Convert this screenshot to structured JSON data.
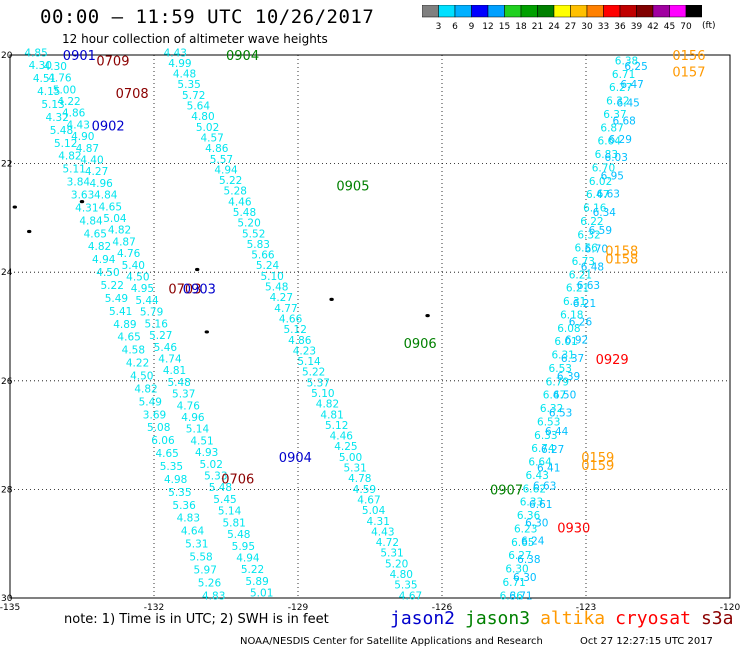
{
  "title": "00:00 – 11:59 UTC 10/26/2017",
  "subtitle": "12 hour collection of altimeter wave heights",
  "units": "(ft)",
  "colorbar": {
    "colors": [
      "#808080",
      "#00e0ff",
      "#00b0ff",
      "#0000ff",
      "#00a0ff",
      "#20d020",
      "#00a000",
      "#008000",
      "#ffff00",
      "#ffc000",
      "#ff8000",
      "#ff0000",
      "#c00000",
      "#800000",
      "#a000a0",
      "#ff00ff",
      "#000000"
    ],
    "labels": [
      "3",
      "6",
      "9",
      "12",
      "15",
      "18",
      "21",
      "24",
      "27",
      "30",
      "33",
      "36",
      "39",
      "42",
      "45",
      "70"
    ]
  },
  "axes": {
    "x_ticks": [
      "-135",
      "-132",
      "-129",
      "-126",
      "-123",
      "-120"
    ],
    "y_ticks": [
      "20",
      "22",
      "24",
      "26",
      "28",
      "30"
    ]
  },
  "tracks": [
    {
      "id": "left-pass-1",
      "color": "#00e5ee",
      "start": [
        -134.7,
        19.95
      ],
      "end": [
        -131.0,
        29.95
      ],
      "values": [
        "4.85",
        "4.30",
        "4.51",
        "4.15",
        "5.13",
        "4.32",
        "5.48",
        "5.12",
        "4.82",
        "5.11",
        "3.84",
        "3.63",
        "4.31",
        "4.84",
        "4.65",
        "4.82",
        "4.94",
        "4.50",
        "5.22",
        "5.49",
        "5.41",
        "4.89",
        "4.65",
        "4.58",
        "4.22",
        "4.50",
        "4.82",
        "5.49",
        "3.69",
        "5.08",
        "6.06",
        "4.65",
        "5.35",
        "4.98",
        "5.35",
        "5.36",
        "4.83",
        "4.64",
        "5.31",
        "5.58",
        "5.97",
        "5.26",
        "4.83"
      ]
    },
    {
      "id": "left-pass-2",
      "color": "#00e5ee",
      "start": [
        -134.3,
        20.2
      ],
      "end": [
        -130.0,
        29.9
      ],
      "values": [
        "4.30",
        "4.76",
        "5.00",
        "4.22",
        "4.86",
        "4.43",
        "4.90",
        "4.87",
        "4.40",
        "4.27",
        "4.96",
        "4.84",
        "4.65",
        "5.04",
        "4.82",
        "4.87",
        "4.76",
        "5.40",
        "4.50",
        "4.95",
        "5.44",
        "5.79",
        "5.16",
        "5.27",
        "5.46",
        "4.74",
        "4.81",
        "5.48",
        "5.37",
        "4.76",
        "4.96",
        "5.14",
        "4.51",
        "4.93",
        "5.02",
        "5.33",
        "5.48",
        "5.45",
        "5.14",
        "5.81",
        "5.48",
        "5.95",
        "4.94",
        "5.22",
        "5.89",
        "5.01"
      ]
    },
    {
      "id": "mid-pass",
      "color": "#00e5ee",
      "start": [
        -131.8,
        19.95
      ],
      "end": [
        -126.9,
        29.95
      ],
      "values": [
        "4.43",
        "4.99",
        "4.48",
        "5.35",
        "5.72",
        "5.64",
        "4.80",
        "5.02",
        "4.57",
        "4.86",
        "5.57",
        "4.94",
        "5.22",
        "5.28",
        "4.46",
        "5.48",
        "5.20",
        "5.52",
        "5.83",
        "5.66",
        "5.24",
        "5.10",
        "5.48",
        "4.27",
        "4.77",
        "4.66",
        "5.12",
        "4.86",
        "4.23",
        "5.14",
        "5.22",
        "5.37",
        "5.10",
        "4.82",
        "4.81",
        "5.12",
        "4.46",
        "4.25",
        "5.00",
        "5.31",
        "4.78",
        "4.59",
        "4.67",
        "5.04",
        "4.31",
        "4.43",
        "4.72",
        "5.31",
        "5.20",
        "4.80",
        "5.35",
        "4.67"
      ]
    },
    {
      "id": "right-pass-1",
      "color": "#00e5ee",
      "start": [
        -122.4,
        20.1
      ],
      "end": [
        -124.8,
        29.95
      ],
      "values": [
        "6.38",
        "6.71",
        "6.27",
        "6.32",
        "6.37",
        "6.87",
        "6.64",
        "6.83",
        "6.70",
        "6.02",
        "6.47",
        "6.16",
        "6.22",
        "6.32",
        "6.56",
        "6.73",
        "6.21",
        "6.21",
        "6.31",
        "6.18",
        "6.08",
        "6.01",
        "6.31",
        "6.53",
        "6.79",
        "6.47",
        "6.32",
        "6.53",
        "6.33",
        "6.74",
        "6.64",
        "6.43",
        "6.62",
        "6.33",
        "6.36",
        "6.23",
        "6.65",
        "6.27",
        "6.30",
        "6.71",
        "6.36"
      ]
    },
    {
      "id": "right-pass-2",
      "color": "#00bfff",
      "start": [
        -122.2,
        20.2
      ],
      "end": [
        -124.6,
        29.95
      ],
      "values": [
        "6.25",
        "6.47",
        "6.45",
        "6.68",
        "6.29",
        "6.03",
        "6.95",
        "6.63",
        "6.34",
        "6.59",
        "6.70",
        "6.48",
        "6.63",
        "6.21",
        "6.26",
        "6.92",
        "6.37",
        "6.39",
        "6.50",
        "6.53",
        "6.44",
        "6.27",
        "6.41",
        "6.63",
        "6.61",
        "6.30",
        "6.24",
        "6.38",
        "6.30",
        "6.71"
      ]
    }
  ],
  "time_labels": [
    {
      "text": "0901",
      "sat": "jason2",
      "lon": -133.9,
      "lat": 20.0
    },
    {
      "text": "0709",
      "sat": "cryosat",
      "lon": -133.2,
      "lat": 20.1
    },
    {
      "text": "0708",
      "sat": "cryosat",
      "lon": -132.8,
      "lat": 20.7
    },
    {
      "text": "0902",
      "sat": "jason2",
      "lon": -133.3,
      "lat": 21.3
    },
    {
      "text": "0904",
      "sat": "jason3",
      "lon": -130.5,
      "lat": 20.0
    },
    {
      "text": "0905",
      "sat": "jason3",
      "lon": -128.2,
      "lat": 22.4
    },
    {
      "text": "0703",
      "sat": "cryosat",
      "lon": -131.7,
      "lat": 24.3
    },
    {
      "text": "0903",
      "sat": "jason2",
      "lon": -131.4,
      "lat": 24.3
    },
    {
      "text": "0906",
      "sat": "jason3",
      "lon": -126.8,
      "lat": 25.3
    },
    {
      "text": "0904",
      "sat": "jason2",
      "lon": -129.4,
      "lat": 27.4
    },
    {
      "text": "0706",
      "sat": "cryosat",
      "lon": -130.6,
      "lat": 27.8
    },
    {
      "text": "0907",
      "sat": "jason3",
      "lon": -125.0,
      "lat": 28.0
    },
    {
      "text": "0156",
      "sat": "altika",
      "lon": -121.2,
      "lat": 20.0
    },
    {
      "text": "0157",
      "sat": "altika",
      "lon": -121.2,
      "lat": 20.3
    },
    {
      "text": "0158",
      "sat": "altika",
      "lon": -122.6,
      "lat": 23.6
    },
    {
      "text": "0158",
      "sat": "altika",
      "lon": -122.6,
      "lat": 23.75
    },
    {
      "text": "0929",
      "sat": "cryosat-red",
      "lon": -122.8,
      "lat": 25.6
    },
    {
      "text": "0159",
      "sat": "altika",
      "lon": -123.1,
      "lat": 27.4
    },
    {
      "text": "0159",
      "sat": "altika",
      "lon": -123.1,
      "lat": 27.55
    },
    {
      "text": "0930",
      "sat": "cryosat-red",
      "lon": -123.6,
      "lat": 28.7
    }
  ],
  "sat_colors": {
    "jason2": "#0000cc",
    "jason3": "#008000",
    "altika": "#ff9900",
    "cryosat": "#8b0000",
    "cryosat-red": "#ff0000"
  },
  "islands": [
    {
      "lon": -134.9,
      "lat": 22.8
    },
    {
      "lon": -134.6,
      "lat": 23.25
    },
    {
      "lon": -133.5,
      "lat": 22.7
    },
    {
      "lon": -131.1,
      "lat": 23.95
    },
    {
      "lon": -128.3,
      "lat": 24.5
    },
    {
      "lon": -130.9,
      "lat": 25.1
    },
    {
      "lon": -126.3,
      "lat": 24.8
    }
  ],
  "note": "note:  1) Time is in UTC;  2) SWH is in feet",
  "satellites": [
    {
      "name": "jason2",
      "color": "#0000cc"
    },
    {
      "name": "jason3",
      "color": "#008000"
    },
    {
      "name": "altika",
      "color": "#ff9900"
    },
    {
      "name": "cryosat",
      "color": "#ff0000"
    },
    {
      "name": "s3a",
      "color": "#8b0000"
    }
  ],
  "credit": "NOAA/NESDIS Center for Satellite Applications and Research",
  "timestamp": "Oct 27 12:27:15 UTC 2017"
}
